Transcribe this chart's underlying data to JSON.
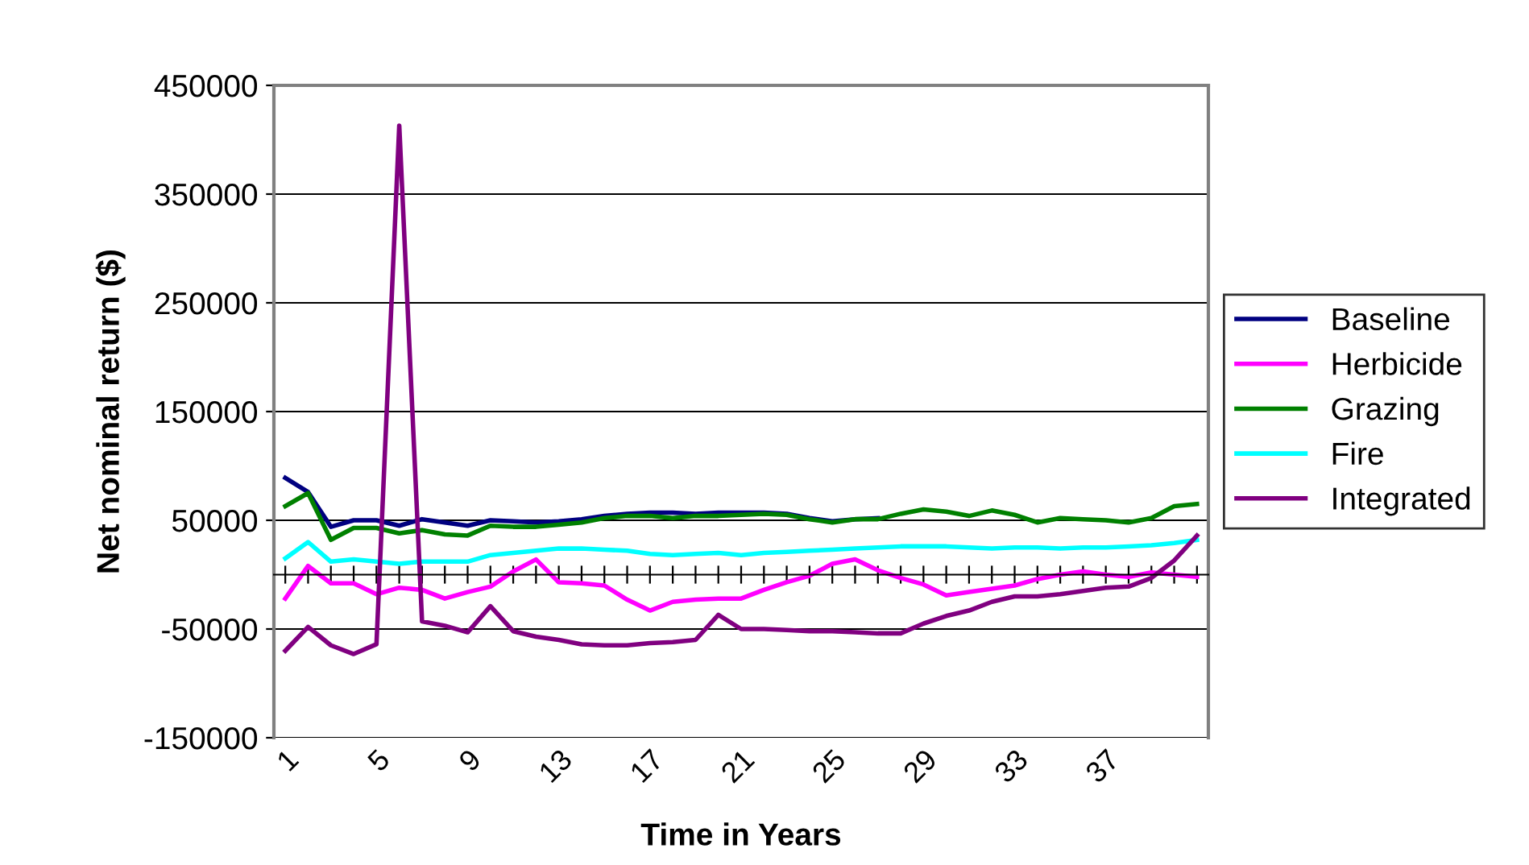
{
  "chart_data": {
    "type": "line",
    "xlabel": "Time in Years",
    "ylabel": "Net nominal return ($)",
    "categories": [
      "1",
      null,
      null,
      null,
      "5",
      null,
      null,
      null,
      "9",
      null,
      null,
      null,
      "13",
      null,
      null,
      null,
      "17",
      null,
      null,
      null,
      "21",
      null,
      null,
      null,
      "25",
      null,
      null,
      null,
      "29",
      null,
      null,
      null,
      "33",
      null,
      null,
      null,
      "37",
      null,
      null,
      null,
      null
    ],
    "series": [
      {
        "name": "Baseline",
        "color": "#000080",
        "values": [
          89000,
          76000,
          44000,
          50000,
          50000,
          45000,
          51000,
          48000,
          45000,
          50000,
          49000,
          48000,
          49000,
          51000,
          54000,
          56000,
          57000,
          57000,
          56000,
          57000,
          57000,
          57000,
          56000,
          52000,
          49000,
          51000,
          52000,
          null,
          null,
          null,
          null,
          null,
          null,
          null,
          null,
          null,
          null,
          null,
          null,
          null,
          null
        ]
      },
      {
        "name": "Herbicide",
        "color": "#ff00ff",
        "values": [
          -22000,
          8000,
          -8000,
          -8000,
          -18000,
          -12000,
          -14000,
          -22000,
          -16000,
          -11000,
          3000,
          14000,
          -7000,
          -8000,
          -10000,
          -23000,
          -33000,
          -25000,
          -23000,
          -22000,
          -22000,
          -14000,
          -7000,
          -1000,
          10000,
          14000,
          4000,
          -3000,
          -9000,
          -19000,
          -16000,
          -13000,
          -10000,
          -4000,
          0,
          3000,
          0,
          -2000,
          2000,
          0,
          -2000
        ]
      },
      {
        "name": "Grazing",
        "color": "#008000",
        "values": [
          63000,
          75000,
          32000,
          43000,
          43000,
          38000,
          41000,
          37000,
          36000,
          45000,
          44000,
          44000,
          46000,
          48000,
          52000,
          54000,
          54000,
          52000,
          54000,
          54000,
          55000,
          56000,
          55000,
          51000,
          48000,
          51000,
          51000,
          56000,
          60000,
          58000,
          54000,
          59000,
          55000,
          48000,
          52000,
          51000,
          50000,
          48000,
          52000,
          63000,
          65000
        ]
      },
      {
        "name": "Fire",
        "color": "#00ffff",
        "values": [
          15000,
          30000,
          12000,
          14000,
          12000,
          10000,
          12000,
          12000,
          12000,
          18000,
          20000,
          22000,
          24000,
          24000,
          23000,
          22000,
          19000,
          18000,
          19000,
          20000,
          18000,
          20000,
          21000,
          22000,
          23000,
          24000,
          25000,
          26000,
          26000,
          26000,
          25000,
          24000,
          25000,
          25000,
          24000,
          25000,
          25000,
          26000,
          27000,
          29000,
          32000
        ]
      },
      {
        "name": "Integrated",
        "color": "#800080",
        "values": [
          -70000,
          -48000,
          -65000,
          -73000,
          -64000,
          413000,
          -43000,
          -47000,
          -53000,
          -29000,
          -52000,
          -57000,
          -60000,
          -64000,
          -65000,
          -65000,
          -63000,
          -62000,
          -60000,
          -37000,
          -50000,
          -50000,
          -51000,
          -52000,
          -52000,
          -53000,
          -54000,
          -54000,
          -45000,
          -38000,
          -33000,
          -25000,
          -20000,
          -20000,
          -18000,
          -15000,
          -12000,
          -11000,
          -3000,
          13000,
          36000
        ]
      }
    ],
    "ylim": [
      -150000,
      450000
    ],
    "yticks": [
      -150000,
      -50000,
      50000,
      150000,
      250000,
      350000,
      450000
    ],
    "grid": "y",
    "legend": "right",
    "marker": "none",
    "line_style": "solid"
  }
}
